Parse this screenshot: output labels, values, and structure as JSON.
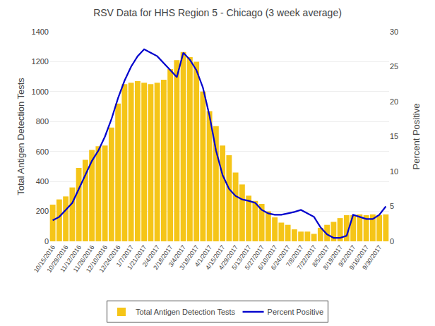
{
  "chart_data": {
    "type": "bar",
    "title": "RSV Data for HHS Region 5 - Chicago (3 week average)",
    "ylabel": "Total Antigen Detection Tests",
    "y2label": "Percent Positive",
    "categories": [
      "10/15/2016",
      null,
      "10/29/2016",
      null,
      "11/12/2016",
      null,
      "11/26/2016",
      null,
      "12/10/2016",
      null,
      "12/24/2016",
      null,
      "1/7/2017",
      null,
      "1/21/2017",
      null,
      "2/4/2017",
      null,
      "2/18/2017",
      null,
      "3/4/2017",
      null,
      "3/18/2017",
      null,
      "4/1/2017",
      null,
      "4/15/2017",
      null,
      "4/29/2017",
      null,
      "5/13/2017",
      null,
      "5/27/2017",
      null,
      "6/10/2017",
      null,
      "6/24/2017",
      null,
      "7/8/2017",
      null,
      "7/22/2017",
      null,
      "8/5/2017",
      null,
      "8/19/2017",
      null,
      "9/2/2017",
      null,
      "9/16/2017",
      null,
      "9/30/2017",
      null
    ],
    "series": [
      {
        "name": "Total Antigen Detection Tests",
        "type": "bar",
        "color": "#F5C518",
        "values": [
          245,
          280,
          300,
          360,
          490,
          545,
          610,
          635,
          640,
          760,
          920,
          1050,
          1060,
          1070,
          1060,
          1050,
          1060,
          1080,
          1150,
          1210,
          1265,
          1230,
          1200,
          1000,
          870,
          770,
          640,
          575,
          460,
          380,
          305,
          270,
          250,
          200,
          160,
          125,
          110,
          80,
          65,
          65,
          50,
          90,
          110,
          130,
          155,
          175,
          175,
          180,
          175,
          180,
          175,
          180
        ]
      },
      {
        "name": "Percent Positive",
        "type": "line",
        "color": "#0000CC",
        "axis": "y2",
        "values": [
          3.0,
          3.5,
          4.5,
          5.5,
          7.5,
          9.5,
          11.5,
          13.0,
          15.0,
          17.5,
          20.5,
          23.0,
          25.0,
          26.5,
          27.5,
          27.0,
          26.5,
          25.5,
          24.5,
          23.5,
          27.0,
          26.0,
          24.5,
          22.0,
          18.0,
          13.0,
          9.5,
          7.5,
          6.5,
          6.0,
          5.8,
          5.5,
          4.5,
          4.0,
          3.8,
          3.8,
          4.0,
          4.2,
          4.5,
          4.0,
          3.5,
          2.0,
          1.0,
          0.5,
          0.5,
          0.8,
          3.8,
          3.5,
          3.2,
          3.2,
          3.8,
          5.0
        ]
      }
    ],
    "ylim": [
      0,
      1400
    ],
    "yticks": [
      0,
      200,
      400,
      600,
      800,
      1000,
      1200,
      1400
    ],
    "y2lim": [
      0,
      30
    ],
    "y2ticks": [
      0,
      5,
      10,
      15,
      20,
      25,
      30
    ],
    "grid": true,
    "legend": "bottom"
  }
}
